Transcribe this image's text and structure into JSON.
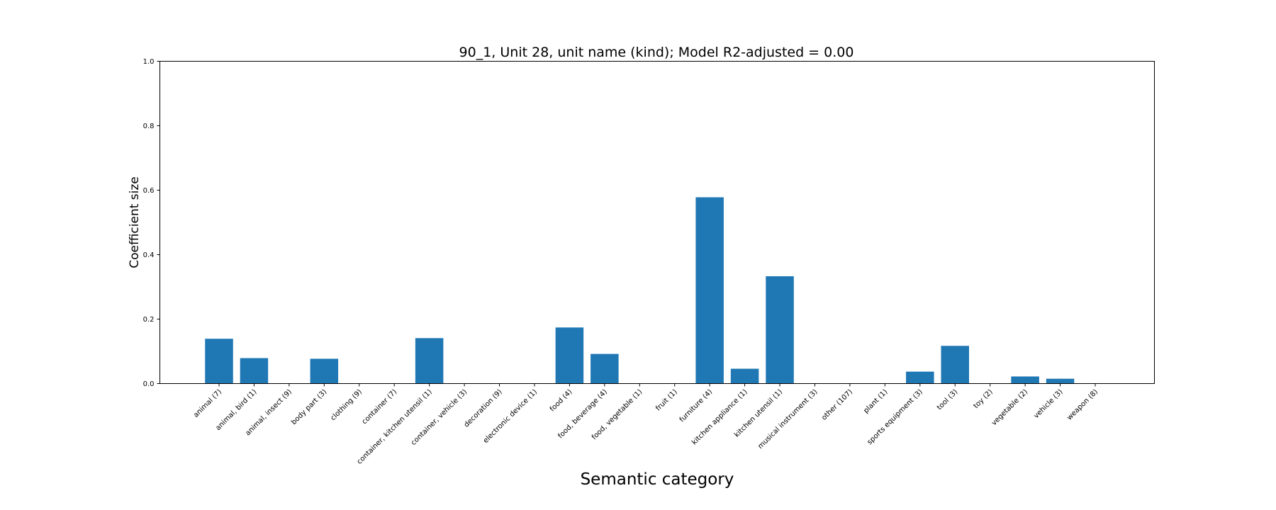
{
  "chart_data": {
    "type": "bar",
    "title": "90_1, Unit 28, unit name (kind); Model R2-adjusted = 0.00",
    "xlabel": "Semantic category",
    "ylabel": "Coefficient size",
    "ylim": [
      0.0,
      1.0
    ],
    "yticks": [
      "0.0",
      "0.2",
      "0.4",
      "0.6",
      "0.8",
      "1.0"
    ],
    "grid": false,
    "bar_color": "#1f77b4",
    "categories": [
      "animal  (7)",
      "animal, bird  (1)",
      "animal, insect  (9)",
      "body part  (3)",
      "clothing  (9)",
      "container  (7)",
      "container, kitchen utensil  (1)",
      "container, vehicle  (3)",
      "decoration  (9)",
      "electronic device  (1)",
      "food  (4)",
      "food, beverage  (4)",
      "food, vegetable  (1)",
      "fruit  (1)",
      "furniture  (4)",
      "kitchen appliance  (1)",
      "kitchen utensil  (1)",
      "musical instrument  (3)",
      "other  (107)",
      "plant  (1)",
      "sports equipment  (3)",
      "tool  (3)",
      "toy  (2)",
      "vegetable  (2)",
      "vehicle  (3)",
      "weapon  (8)"
    ],
    "values": [
      0.139,
      0.079,
      0.0,
      0.077,
      0.0,
      0.0,
      0.141,
      0.0,
      0.0,
      0.0,
      0.174,
      0.092,
      0.0,
      0.0,
      0.578,
      0.046,
      0.333,
      0.0,
      0.0,
      0.0,
      0.037,
      0.117,
      0.0,
      0.022,
      0.015,
      0.0
    ]
  }
}
